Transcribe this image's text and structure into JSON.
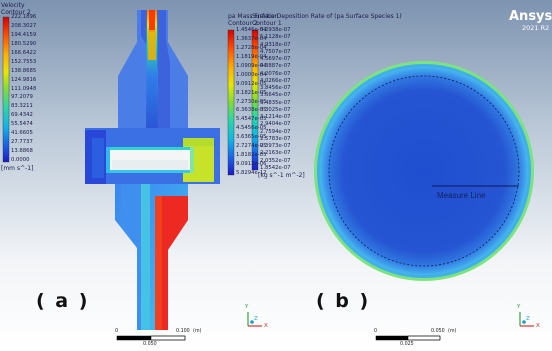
{
  "branding": {
    "logo": "Ansys",
    "version": "2021 R2"
  },
  "legend_velocity": {
    "title_line1": "Velocity",
    "title_line2": "Contour 2",
    "ticks": [
      "222.1896",
      "208.3027",
      "194.4159",
      "180.5290",
      "166.6422",
      "152.7553",
      "138.8685",
      "124.9816",
      "111.0948",
      "97.2079",
      "83.3211",
      "69.4342",
      "55.5474",
      "41.6605",
      "27.7737",
      "13.8868",
      "0.0000"
    ],
    "unit": "[mm s^-1]"
  },
  "legend_mass_fraction": {
    "title_line1": "pa Mass Fraction",
    "title_line2": "Contour 2",
    "ticks": [
      "1.4546e-04",
      "1.3637e-04",
      "1.2728e-04",
      "1.1819e-04",
      "1.0909e-04",
      "1.0000e-04",
      "9.0912e-05",
      "8.1821e-05",
      "7.2730e-05",
      "6.3638e-05",
      "5.4547e-05",
      "4.5456e-05",
      "3.6365e-05",
      "2.7274e-05",
      "1.8182e-05",
      "9.0912e-06",
      "5.8294e-12"
    ]
  },
  "legend_deposition": {
    "title_line1": "Surface Deposition Rate of (pa Surface Species 1)",
    "title_line2": "Contour 1",
    "ticks": [
      "5.2938e-07",
      "5.1128e-07",
      "4.9318e-07",
      "4.7507e-07",
      "4.5697e-07",
      "4.3887e-07",
      "4.2076e-07",
      "4.0266e-07",
      "3.8456e-07",
      "3.6645e-07",
      "3.4835e-07",
      "3.3025e-07",
      "3.1214e-07",
      "2.9404e-07",
      "2.7594e-07",
      "2.5783e-07",
      "2.3973e-07",
      "2.2163e-07",
      "2.0352e-07",
      "1.8542e-07"
    ],
    "unit": "[kg s^-1 m^-2]"
  },
  "panel_labels": {
    "a": "( a )",
    "b": "( b )"
  },
  "annotation": {
    "measure_line": "Measure Line"
  },
  "scale_a": {
    "start": "0",
    "end": "0.100",
    "unit": "(m)",
    "mid": "0.050"
  },
  "scale_b": {
    "start": "0",
    "end": "0.050",
    "unit": "(m)",
    "mid": "0.025"
  },
  "axes": {
    "x": "X",
    "y": "Y",
    "z": "Z"
  }
}
